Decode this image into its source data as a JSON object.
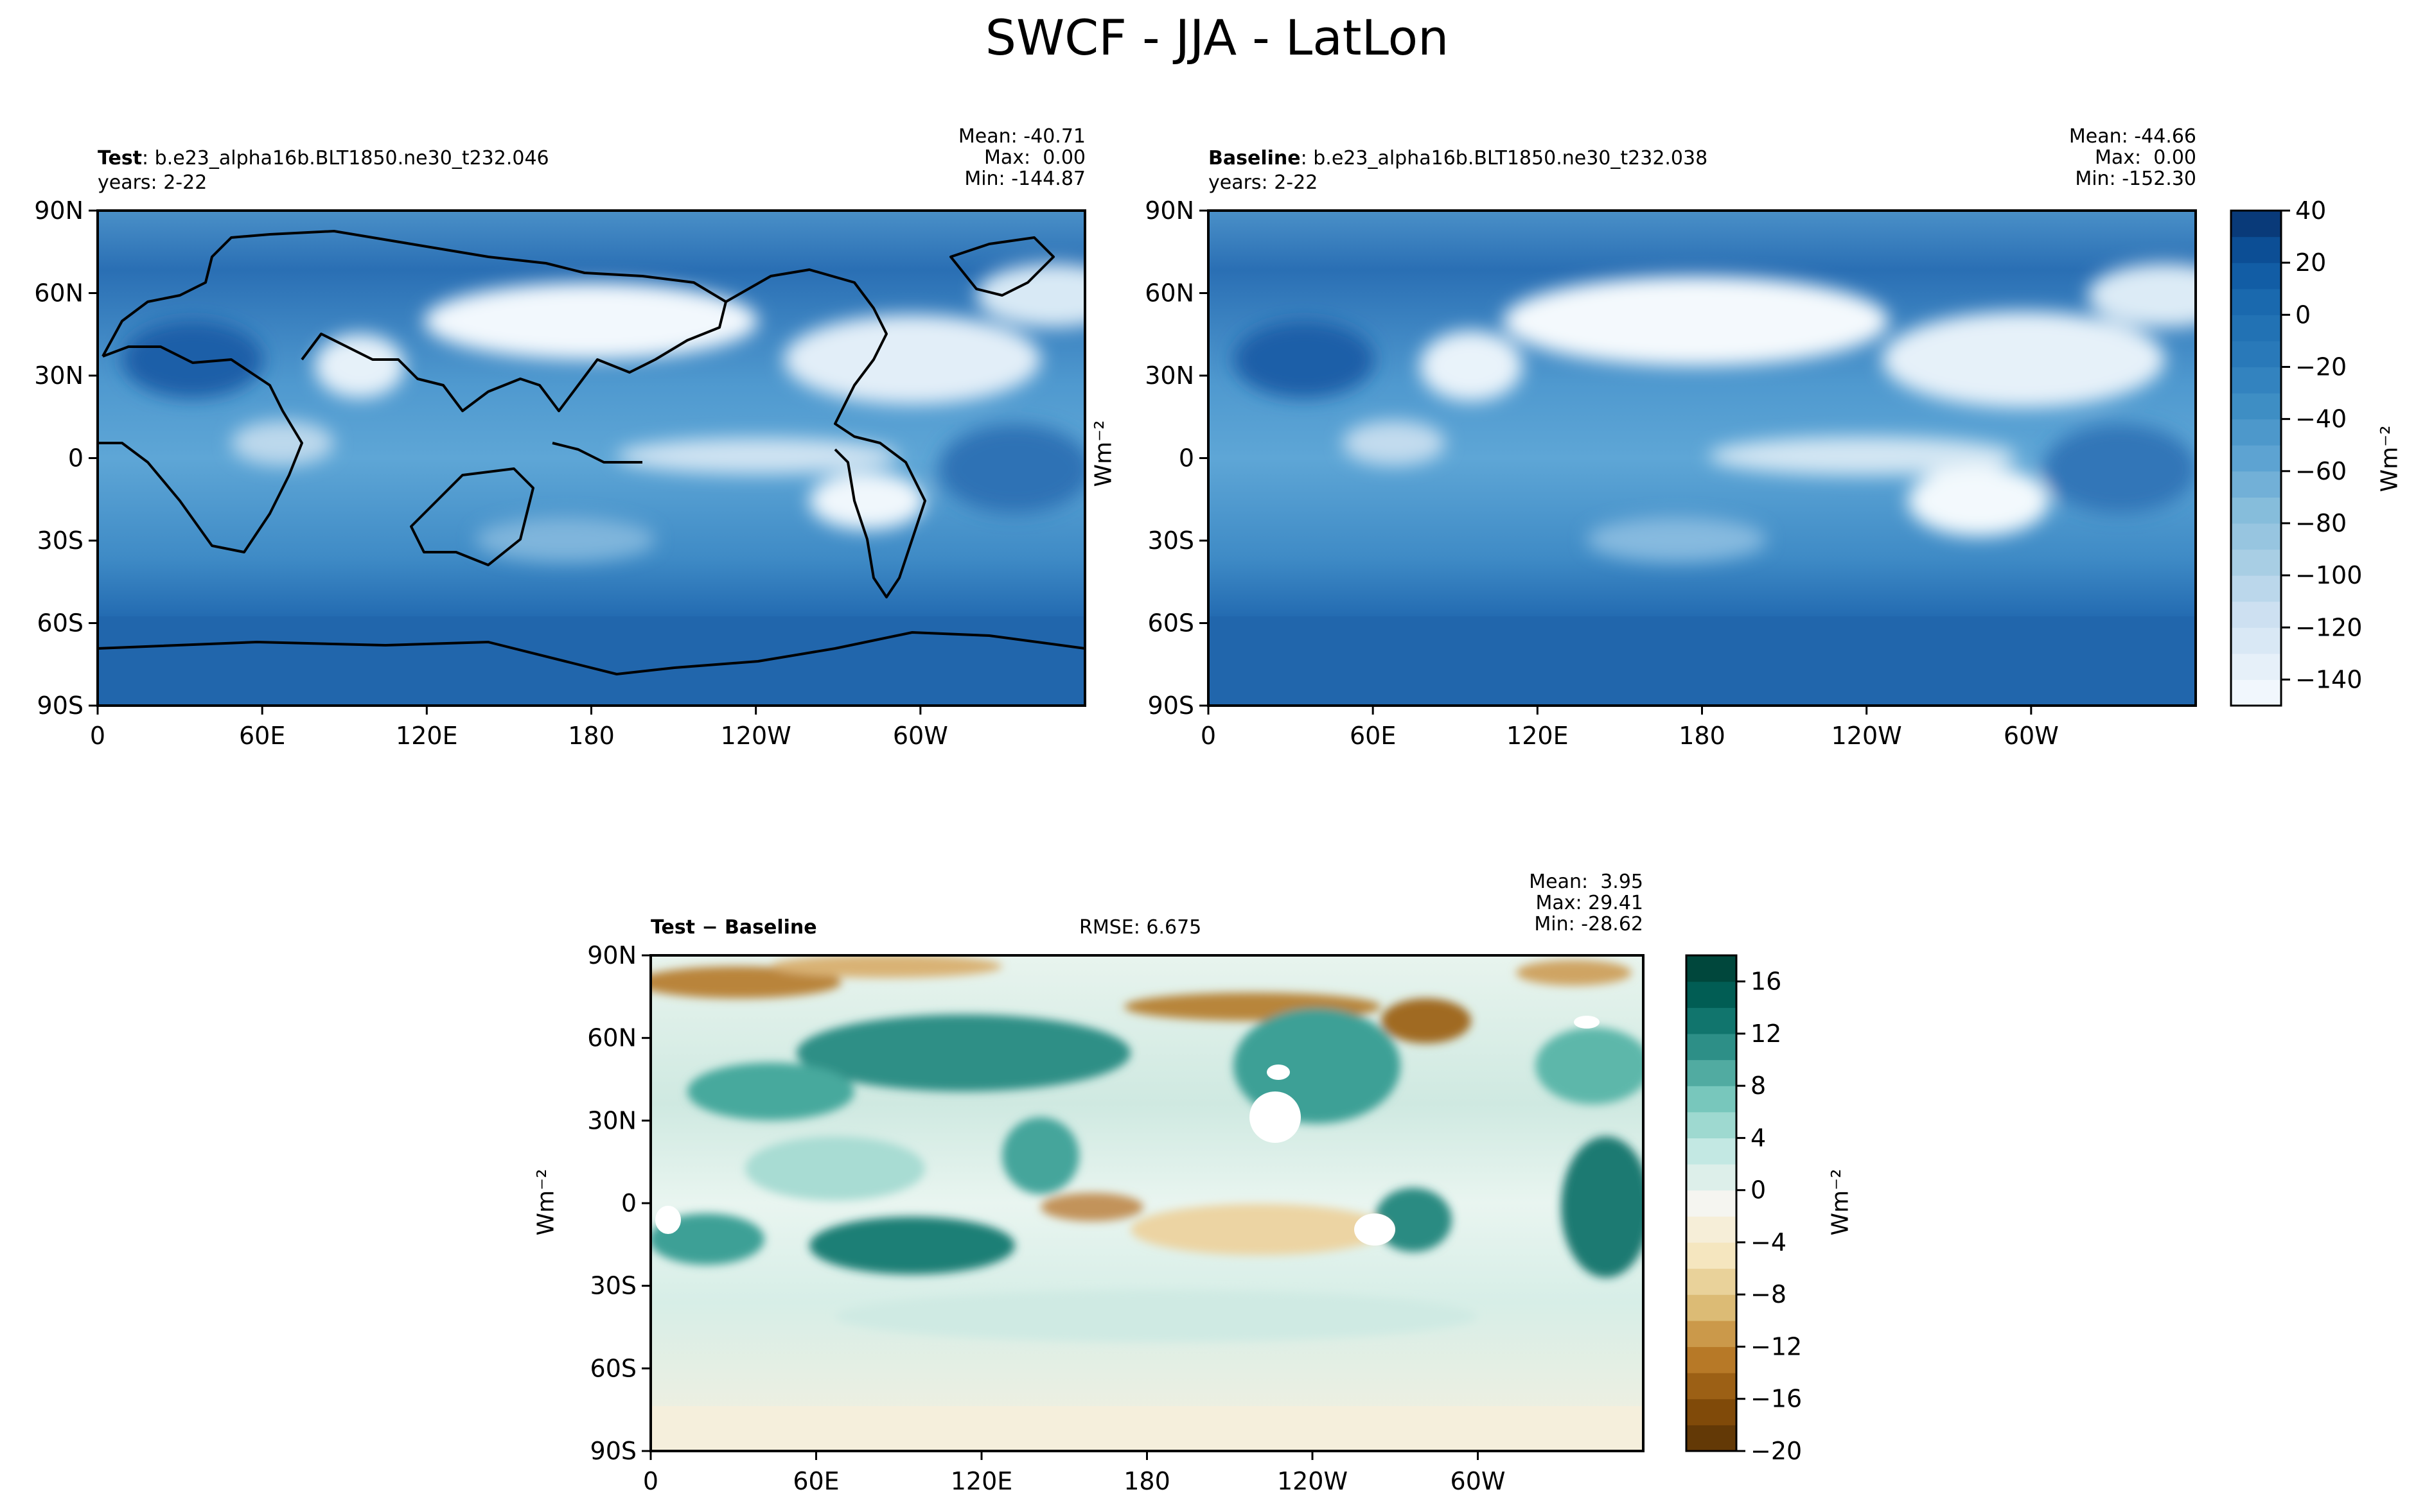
{
  "figure": {
    "title": "SWCF - JJA - LatLon"
  },
  "chart_data": [
    {
      "type": "heatmap",
      "panel": "test",
      "title_bold": "Test",
      "title_rest": ": b.e23_alpha16b.BLT1850.ne30_t232.046",
      "subtitle": "years: 2-22",
      "stats": {
        "mean": "Mean: -40.71",
        "max": "Max:  0.00",
        "min": "Min: -144.87"
      },
      "x_ticks": [
        "0",
        "60E",
        "120E",
        "180",
        "120W",
        "60W"
      ],
      "y_ticks": [
        "90N",
        "60N",
        "30N",
        "0",
        "30S",
        "60S",
        "90S"
      ],
      "xlim": [
        0,
        360
      ],
      "ylim": [
        -90,
        90
      ],
      "shared_colorbar": true
    },
    {
      "type": "heatmap",
      "panel": "baseline",
      "title_bold": "Baseline",
      "title_rest": ": b.e23_alpha16b.BLT1850.ne30_t232.038",
      "subtitle": "years: 2-22",
      "stats": {
        "mean": "Mean: -44.66",
        "max": "Max:  0.00",
        "min": "Min: -152.30"
      },
      "x_ticks": [
        "0",
        "60E",
        "120E",
        "180",
        "120W",
        "60W"
      ],
      "y_ticks": [
        "90N",
        "60N",
        "30N",
        "0",
        "30S",
        "60S",
        "90S"
      ],
      "xlim": [
        0,
        360
      ],
      "ylim": [
        -90,
        90
      ],
      "colorbar": {
        "label": "Wm⁻²",
        "ticks": [
          "40",
          "20",
          "0",
          "−20",
          "−40",
          "−60",
          "−80",
          "−100",
          "−120",
          "−140"
        ],
        "range": [
          -150,
          40
        ],
        "levels": 19,
        "colors": [
          "#f7fbff",
          "#e1edf8",
          "#c9ddf0",
          "#a4cce3",
          "#84bcdb",
          "#5da3d2",
          "#3f8fc5",
          "#2a7bba",
          "#1d6cb1",
          "#0d56a0",
          "#08306b"
        ]
      }
    },
    {
      "type": "heatmap",
      "panel": "difference",
      "title_bold": "Test − Baseline",
      "rmse": "RMSE: 6.675",
      "stats": {
        "mean": "Mean:  3.95",
        "max": "Max: 29.41",
        "min": "Min: -28.62"
      },
      "x_ticks": [
        "0",
        "60E",
        "120E",
        "180",
        "120W",
        "60W"
      ],
      "y_ticks": [
        "90N",
        "60N",
        "30N",
        "0",
        "30S",
        "60S",
        "90S"
      ],
      "xlim": [
        0,
        360
      ],
      "ylim": [
        -90,
        90
      ],
      "ylabel": "Wm⁻²",
      "colorbar": {
        "label": "Wm⁻²",
        "ticks": [
          "16",
          "12",
          "8",
          "4",
          "0",
          "−4",
          "−8",
          "−12",
          "−16",
          "−20"
        ],
        "range": [
          -20,
          18
        ],
        "levels": 19,
        "colors": [
          "#543005",
          "#8c510a",
          "#bf812d",
          "#dfc27d",
          "#f6e8c3",
          "#f5f5f0",
          "#c7eae5",
          "#80cdc1",
          "#35978f",
          "#01665e",
          "#003c30"
        ]
      }
    }
  ]
}
